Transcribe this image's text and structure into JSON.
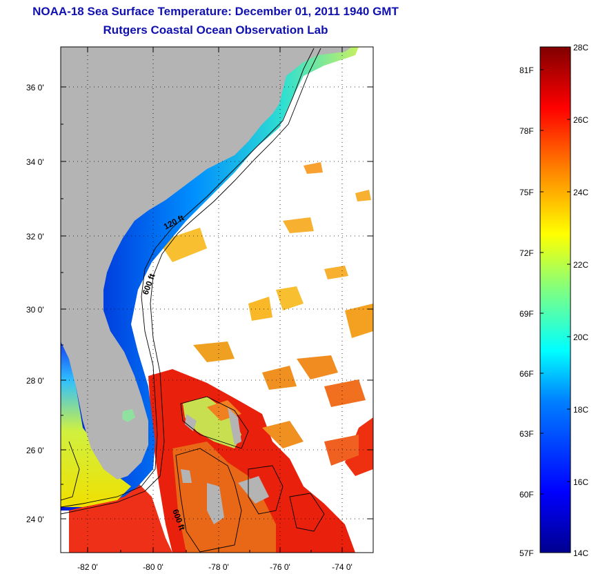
{
  "title": "NOAA-18 Sea Surface Temperature:  December 01, 2011 1940 GMT",
  "subtitle": "Rutgers Coastal Ocean Observation Lab",
  "lat_labels": [
    "36 0'",
    "34 0'",
    "32 0'",
    "30 0'",
    "28 0'",
    "26 0'",
    "24 0'"
  ],
  "lon_labels": [
    "-82 0'",
    "-80 0'",
    "-78 0'",
    "-76 0'",
    "-74 0'"
  ],
  "isobaths": [
    "120 ft",
    "600 ft",
    "600 ft"
  ],
  "colorbar": {
    "fahrenheit": [
      "81F",
      "78F",
      "75F",
      "72F",
      "69F",
      "66F",
      "63F",
      "60F",
      "57F"
    ],
    "celsius": [
      "28C",
      "26C",
      "24C",
      "22C",
      "20C",
      "18C",
      "16C",
      "14C"
    ],
    "colors": [
      "#00008f",
      "#0000ff",
      "#0080ff",
      "#00ffff",
      "#80ff80",
      "#ffff00",
      "#ff8000",
      "#ff0000",
      "#800000"
    ]
  },
  "colors": {
    "title": "#1010b0",
    "land": "#b4b4b4",
    "missing": "#ffffff"
  }
}
